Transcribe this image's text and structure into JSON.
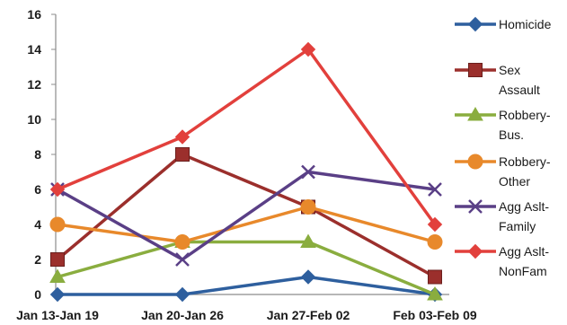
{
  "chart_data": {
    "type": "line",
    "categories": [
      "Jan 13-Jan 19",
      "Jan 20-Jan 26",
      "Jan 27-Feb 02",
      "Feb 03-Feb 09"
    ],
    "ylim": [
      0,
      16
    ],
    "yticks": [
      0,
      2,
      4,
      6,
      8,
      10,
      12,
      14,
      16
    ],
    "grid": false,
    "legend_position": "right",
    "series": [
      {
        "name": "Homicide",
        "legend_lines": [
          "Homicide"
        ],
        "values": [
          0,
          0,
          1,
          0
        ],
        "color": "#2e5f9e",
        "marker": "diamond"
      },
      {
        "name": "Sex Assault",
        "legend_lines": [
          "Sex",
          "Assault"
        ],
        "values": [
          2,
          8,
          5,
          1
        ],
        "color": "#9b2f2c",
        "marker": "square"
      },
      {
        "name": "Robbery-Bus.",
        "legend_lines": [
          "Robbery-",
          "Bus."
        ],
        "values": [
          1,
          3,
          3,
          0
        ],
        "color": "#8aad3f",
        "marker": "triangle"
      },
      {
        "name": "Robbery-Other",
        "legend_lines": [
          "Robbery-",
          "Other"
        ],
        "values": [
          4,
          3,
          5,
          3
        ],
        "color": "#e8892b",
        "marker": "circle"
      },
      {
        "name": "Agg Aslt-Family",
        "legend_lines": [
          "Agg Aslt-",
          "Family"
        ],
        "values": [
          6,
          2,
          7,
          6
        ],
        "color": "#5a3f86",
        "marker": "x"
      },
      {
        "name": "Agg Aslt-NonFam",
        "legend_lines": [
          "Agg Aslt-",
          "NonFam"
        ],
        "values": [
          6,
          9,
          14,
          4
        ],
        "color": "#e2403c",
        "marker": "diamond"
      }
    ]
  }
}
